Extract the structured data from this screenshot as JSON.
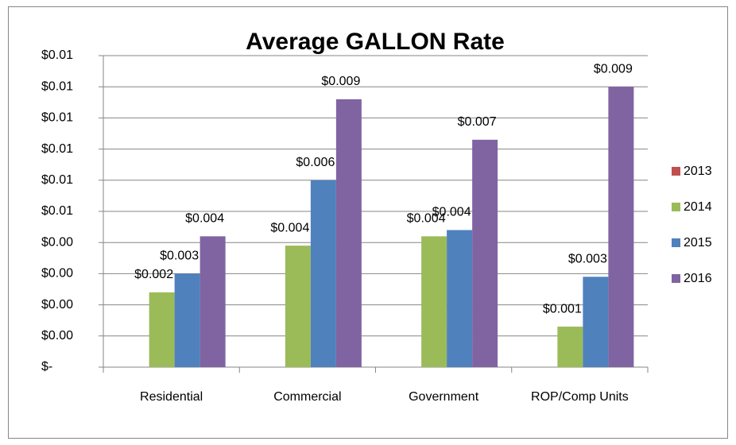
{
  "chart_data": {
    "type": "bar",
    "title": "Average GALLON Rate",
    "categories": [
      "Residential",
      "Commercial",
      "Government",
      "ROP/Comp Units"
    ],
    "series": [
      {
        "name": "2013",
        "color": "#c0504d",
        "values": [
          null,
          null,
          null,
          null
        ]
      },
      {
        "name": "2014",
        "color": "#9bbb59",
        "values": [
          0.0024,
          0.0039,
          0.0042,
          0.0013
        ],
        "value_labels": [
          "$0.002",
          "$0.004",
          "$0.004",
          "$0.001"
        ]
      },
      {
        "name": "2015",
        "color": "#4f81bd",
        "values": [
          0.003,
          0.006,
          0.0044,
          0.0029
        ],
        "value_labels": [
          "$0.003",
          "$0.006",
          "$0.004",
          "$0.003"
        ]
      },
      {
        "name": "2016",
        "color": "#8064a2",
        "values": [
          0.0042,
          0.0086,
          0.0073,
          0.009
        ],
        "value_labels": [
          "$0.004",
          "$0.009",
          "$0.007",
          "$0.009"
        ]
      }
    ],
    "ylim": [
      0,
      0.01
    ],
    "yticks": [
      {
        "value": 0,
        "label": "$-"
      },
      {
        "value": 0.001,
        "label": "$0.00"
      },
      {
        "value": 0.002,
        "label": "$0.00"
      },
      {
        "value": 0.003,
        "label": "$0.00"
      },
      {
        "value": 0.004,
        "label": "$0.00"
      },
      {
        "value": 0.005,
        "label": "$0.01"
      },
      {
        "value": 0.006,
        "label": "$0.01"
      },
      {
        "value": 0.007,
        "label": "$0.01"
      },
      {
        "value": 0.008,
        "label": "$0.01"
      },
      {
        "value": 0.009,
        "label": "$0.01"
      },
      {
        "value": 0.01,
        "label": "$0.01"
      }
    ],
    "grid": true,
    "legend": "right"
  }
}
